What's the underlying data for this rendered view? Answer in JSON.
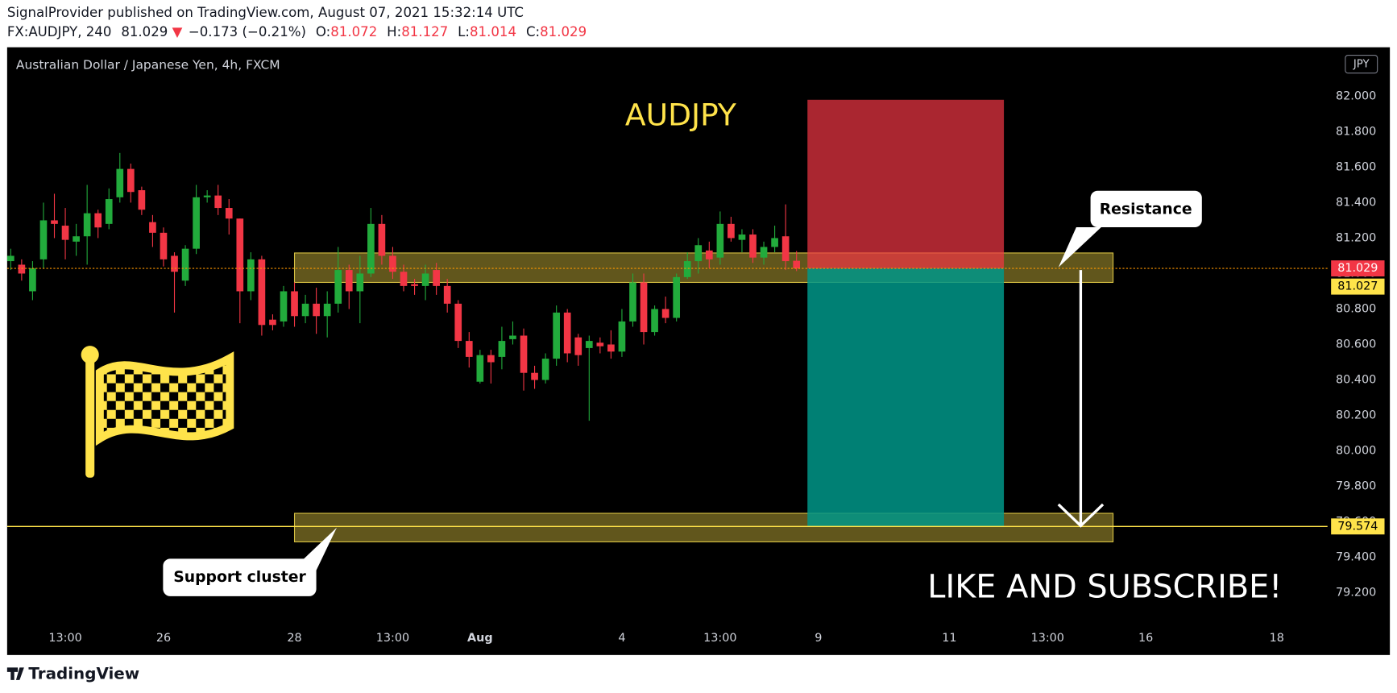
{
  "header": {
    "published": "SignalProvider published on TradingView.com, August 07, 2021 15:32:14 UTC",
    "symbol": "FX:AUDJPY, 240",
    "arrow": "▼",
    "change": "−0.173 (−0.21%)",
    "ohlc_labels": [
      "O:",
      "H:",
      "L:",
      "C:"
    ]
  },
  "footer": {
    "brand": "TradingView"
  },
  "chart_data": {
    "type": "candlestick",
    "title": "Australian Dollar / Japanese Yen, 4h, FXCM",
    "currency": "JPY",
    "up_color": "#22ab3c",
    "down_color": "#f23645",
    "open": [
      81.07,
      81.05,
      80.9,
      81.08,
      81.3,
      81.27,
      81.18,
      81.21,
      81.34,
      81.28,
      81.43,
      81.59,
      81.47,
      81.29,
      81.23,
      81.1,
      80.96,
      81.14,
      81.43,
      81.44,
      81.37,
      81.31,
      80.9,
      81.08,
      80.74,
      80.73,
      80.9,
      80.76,
      80.83,
      80.76,
      80.83,
      81.02,
      80.9,
      81.0,
      81.28,
      81.1,
      81.01,
      80.94,
      80.93,
      81.02,
      80.93,
      80.83,
      80.62,
      80.39,
      80.54,
      80.53,
      80.63,
      80.65,
      80.44,
      80.4,
      80.52,
      80.78,
      80.64,
      80.58,
      80.61,
      80.6,
      80.56,
      80.73,
      80.95,
      80.67,
      80.8,
      80.75,
      80.98,
      81.07,
      81.13,
      81.09,
      81.28,
      81.19,
      81.22,
      81.09,
      81.15,
      81.21,
      81.072
    ],
    "high": [
      81.14,
      81.08,
      81.07,
      81.4,
      81.45,
      81.37,
      81.28,
      81.5,
      81.36,
      81.48,
      81.68,
      81.62,
      81.49,
      81.33,
      81.26,
      81.12,
      81.16,
      81.5,
      81.47,
      81.5,
      81.42,
      81.31,
      81.12,
      81.1,
      80.77,
      80.93,
      80.95,
      80.88,
      80.92,
      80.9,
      81.15,
      81.05,
      81.1,
      81.37,
      81.33,
      81.15,
      81.05,
      80.97,
      81.05,
      81.06,
      80.97,
      80.85,
      80.67,
      80.57,
      80.57,
      80.7,
      80.73,
      80.69,
      80.48,
      80.55,
      80.82,
      80.8,
      80.66,
      80.65,
      80.64,
      80.68,
      80.8,
      81.0,
      81.0,
      80.82,
      80.87,
      81.0,
      81.12,
      81.2,
      81.18,
      81.35,
      81.32,
      81.25,
      81.25,
      81.18,
      81.27,
      81.39,
      81.127
    ],
    "low": [
      81.02,
      80.96,
      80.85,
      81.03,
      81.2,
      81.08,
      81.1,
      81.05,
      81.2,
      81.25,
      81.4,
      81.4,
      81.33,
      81.15,
      81.04,
      80.78,
      80.93,
      81.11,
      81.4,
      81.33,
      81.22,
      80.72,
      80.85,
      80.65,
      80.68,
      80.7,
      80.7,
      80.72,
      80.66,
      80.64,
      80.78,
      80.8,
      80.72,
      80.98,
      81.05,
      80.97,
      80.9,
      80.88,
      80.85,
      80.88,
      80.78,
      80.58,
      80.47,
      80.38,
      80.38,
      80.46,
      80.6,
      80.34,
      80.35,
      80.38,
      80.48,
      80.5,
      80.48,
      80.17,
      80.55,
      80.52,
      80.53,
      80.7,
      80.6,
      80.65,
      80.72,
      80.73,
      80.97,
      81.0,
      81.03,
      81.05,
      81.18,
      81.12,
      81.06,
      81.05,
      81.12,
      81.02,
      81.014
    ],
    "close": [
      81.1,
      81.0,
      81.03,
      81.3,
      81.28,
      81.19,
      81.21,
      81.34,
      81.26,
      81.42,
      81.59,
      81.46,
      81.36,
      81.23,
      81.08,
      81.01,
      81.14,
      81.43,
      81.44,
      81.37,
      81.31,
      80.9,
      81.08,
      80.71,
      80.71,
      80.9,
      80.76,
      80.83,
      80.76,
      80.83,
      81.02,
      80.9,
      81.0,
      81.28,
      81.1,
      81.01,
      80.93,
      80.93,
      81.0,
      80.93,
      80.83,
      80.62,
      80.53,
      80.54,
      80.5,
      80.62,
      80.65,
      80.44,
      80.4,
      80.52,
      80.78,
      80.55,
      80.54,
      80.62,
      80.59,
      80.56,
      80.73,
      80.95,
      80.67,
      80.8,
      80.75,
      80.98,
      81.07,
      81.16,
      81.08,
      81.28,
      81.2,
      81.22,
      81.09,
      81.15,
      81.2,
      81.07,
      81.029
    ],
    "xlim": [
      -0.33,
      120.65
    ],
    "xticks": [
      {
        "value": 5,
        "label": "13:00"
      },
      {
        "value": 14,
        "label": "26"
      },
      {
        "value": 26,
        "label": "28"
      },
      {
        "value": 35,
        "label": "13:00"
      },
      {
        "value": 43,
        "label": "Aug"
      },
      {
        "value": 56,
        "label": "4"
      },
      {
        "value": 65,
        "label": "13:00"
      },
      {
        "value": 74,
        "label": "9"
      },
      {
        "value": 86,
        "label": "11"
      },
      {
        "value": 95,
        "label": "13:00"
      },
      {
        "value": 104,
        "label": "16"
      },
      {
        "value": 116,
        "label": "18"
      }
    ],
    "ylim": [
      78.849,
      82.276
    ],
    "yticks": [
      {
        "value": 79.2,
        "label": "79.200"
      },
      {
        "value": 79.4,
        "label": "79.400"
      },
      {
        "value": 79.6,
        "label": "79.600"
      },
      {
        "value": 79.8,
        "label": "79.800"
      },
      {
        "value": 80,
        "label": "80.000"
      },
      {
        "value": 80.2,
        "label": "80.200"
      },
      {
        "value": 80.4,
        "label": "80.400"
      },
      {
        "value": 80.6,
        "label": "80.600"
      },
      {
        "value": 80.8,
        "label": "80.800"
      },
      {
        "value": 81,
        "label": "81.000"
      },
      {
        "value": 81.2,
        "label": "81.200"
      },
      {
        "value": 81.4,
        "label": "81.400"
      },
      {
        "value": 81.6,
        "label": "81.600"
      },
      {
        "value": 81.8,
        "label": "81.800"
      },
      {
        "value": 82,
        "label": "82.000"
      }
    ],
    "last_price": 81.029,
    "line_price": 81.027,
    "target_price": 79.574,
    "stop_price": 81.98,
    "resistance_zone": [
      80.95,
      81.116
    ],
    "support_zone": [
      79.487,
      79.648
    ],
    "annotations": {
      "symbol_title": "AUDJPY",
      "resistance": "Resistance",
      "support": "Support cluster",
      "cta": "LIKE AND SUBSCRIBE!"
    }
  }
}
